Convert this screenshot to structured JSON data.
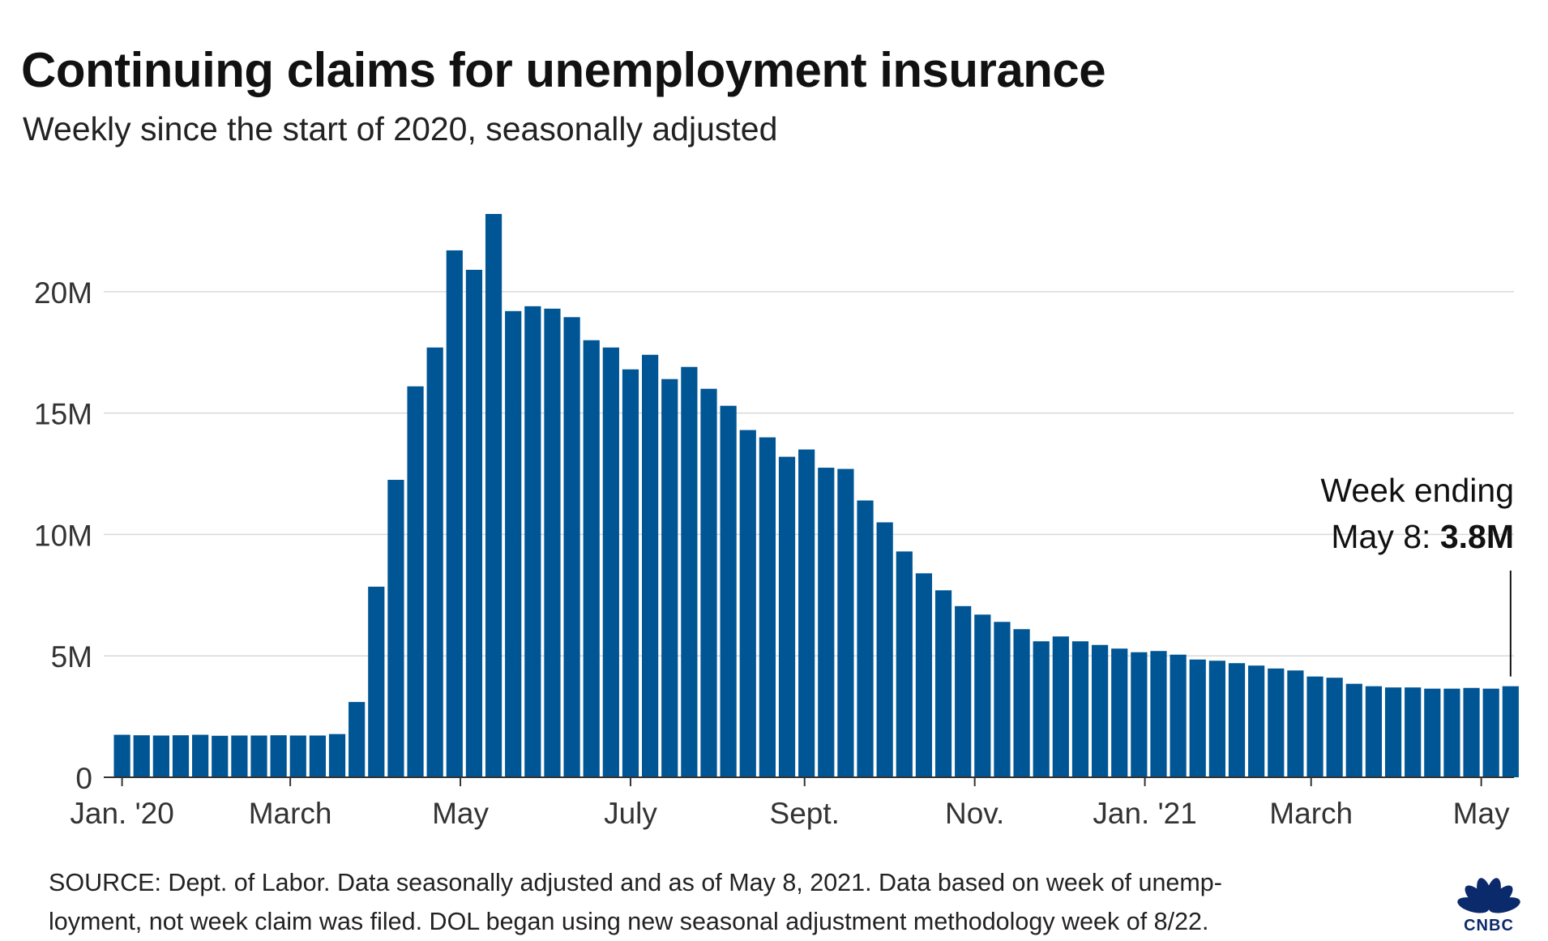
{
  "title": "Continuing claims for unemployment insurance",
  "subtitle": "Weekly since the start of 2020, seasonally adjusted",
  "source": "SOURCE: Dept. of Labor. Data seasonally adjusted and as of May 8, 2021. Data based on week of unemp-loyment, not week claim was filed. DOL began using new seasonal adjustment methodology week of 8/22.",
  "source_lines": [
    "SOURCE: Dept. of Labor. Data seasonally adjusted and as of May 8, 2021. Data based on week of unemp-",
    "loyment, not week claim was filed. DOL began using new seasonal adjustment methodology week of 8/22."
  ],
  "logo_text": "CNBC",
  "logo_colors": [
    "#F6A01A",
    "#E2231A",
    "#7A3E98",
    "#0089D0",
    "#00A651",
    "#FFD200"
  ],
  "chart_data": {
    "type": "bar",
    "color": "#005594",
    "unit": "M",
    "ylim": [
      0,
      23.5
    ],
    "yticks": [
      0,
      5,
      10,
      15,
      20
    ],
    "ytick_labels": [
      "0",
      "5M",
      "10M",
      "15M",
      "20M"
    ],
    "grid": true,
    "xtick_labels": [
      "Jan. '20",
      "March",
      "May",
      "July",
      "Sept.",
      "Nov.",
      "Jan. '21",
      "March",
      "May"
    ],
    "xtick_bar_index": [
      0,
      8.6,
      17.3,
      26,
      34.9,
      43.6,
      52.3,
      60.8,
      69.5
    ],
    "values": [
      1.75,
      1.73,
      1.72,
      1.73,
      1.75,
      1.71,
      1.72,
      1.72,
      1.73,
      1.72,
      1.72,
      1.78,
      3.1,
      7.85,
      12.25,
      16.1,
      17.7,
      21.7,
      20.9,
      23.2,
      19.2,
      19.4,
      19.3,
      18.95,
      18.0,
      17.7,
      16.8,
      17.4,
      16.4,
      16.9,
      16.0,
      15.3,
      14.3,
      14.0,
      13.2,
      13.5,
      12.75,
      12.7,
      11.4,
      10.5,
      9.3,
      8.4,
      7.7,
      7.05,
      6.7,
      6.4,
      6.1,
      5.6,
      5.8,
      5.6,
      5.45,
      5.3,
      5.15,
      5.2,
      5.05,
      4.85,
      4.8,
      4.7,
      4.6,
      4.48,
      4.4,
      4.15,
      4.1,
      3.85,
      3.75,
      3.7,
      3.7,
      3.65,
      3.65,
      3.68,
      3.65,
      3.75
    ],
    "annotation": {
      "line1": "Week ending",
      "line2_prefix": "May 8: ",
      "line2_value": "3.8M",
      "bar_index": 71
    }
  }
}
